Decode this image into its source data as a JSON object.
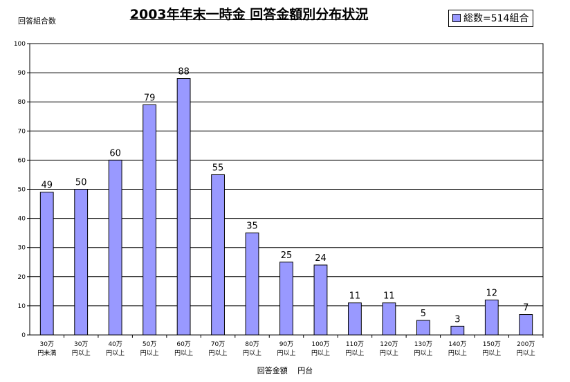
{
  "chart_data": {
    "type": "bar",
    "title": "2003年年末一時金 回答金額別分布状況",
    "ylabel": "回答組合数",
    "xlabel": "回答金額　 円台",
    "legend": {
      "label": "総数=514組合",
      "position": "top-right"
    },
    "ylim": [
      0,
      100
    ],
    "yticks": [
      0,
      10,
      20,
      30,
      40,
      50,
      60,
      70,
      80,
      90,
      100
    ],
    "grid": true,
    "bar_color": "#9999ff",
    "categories": [
      [
        "30万",
        "円未満"
      ],
      [
        "30万",
        "円以上"
      ],
      [
        "40万",
        "円以上"
      ],
      [
        "50万",
        "円以上"
      ],
      [
        "60万",
        "円以上"
      ],
      [
        "70万",
        "円以上"
      ],
      [
        "80万",
        "円以上"
      ],
      [
        "90万",
        "円以上"
      ],
      [
        "100万",
        "円以上"
      ],
      [
        "110万",
        "円以上"
      ],
      [
        "120万",
        "円以上"
      ],
      [
        "130万",
        "円以上"
      ],
      [
        "140万",
        "円以上"
      ],
      [
        "150万",
        "円以上"
      ],
      [
        "200万",
        "円以上"
      ]
    ],
    "values": [
      49,
      50,
      60,
      79,
      88,
      55,
      35,
      25,
      24,
      11,
      11,
      5,
      3,
      12,
      7
    ]
  }
}
